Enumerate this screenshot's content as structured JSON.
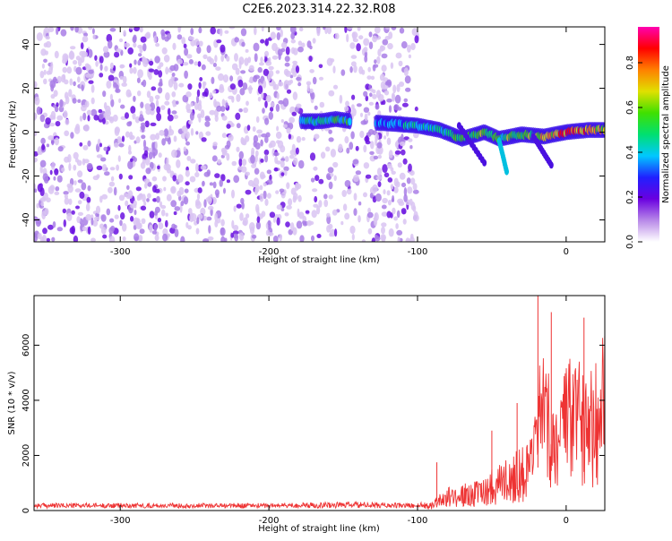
{
  "figure_title": "C2E6.2023.314.22.32.R08",
  "chart_data": [
    {
      "type": "heatmap",
      "title": "C2E6.2023.314.22.32.R08",
      "xlabel": "Height of straight line (km)",
      "ylabel": "Frequency (Hz)",
      "xlim": [
        -358,
        26
      ],
      "ylim": [
        -50,
        48
      ],
      "xticks": [
        -300,
        -200,
        -100,
        0
      ],
      "xtick_labels": [
        "-300",
        "-200",
        "-100",
        "0"
      ],
      "yticks": [
        -40,
        -20,
        0,
        20,
        40
      ],
      "ytick_labels": [
        "-40",
        "-20",
        "0",
        "20",
        "40"
      ],
      "noise_region_x": [
        -358,
        -100
      ],
      "signal_track": {
        "x": [
          -178,
          -165,
          -155,
          -145,
          -120,
          -100,
          -85,
          -70,
          -55,
          -45,
          -30,
          -15,
          0,
          15,
          26
        ],
        "y": [
          5,
          5,
          6,
          5,
          4,
          3,
          1,
          -3,
          0,
          -3,
          -1,
          -2,
          0,
          1,
          1
        ],
        "amplitude": [
          0.45,
          0.5,
          0.55,
          0.5,
          0.4,
          0.45,
          0.5,
          0.55,
          0.6,
          0.55,
          0.6,
          0.7,
          0.85,
          0.8,
          0.7
        ]
      },
      "colorbar": {
        "label": "Normalized spectral amplitude",
        "range": [
          0.0,
          0.96
        ],
        "ticks": [
          0.0,
          0.2,
          0.4,
          0.6,
          0.8
        ],
        "tick_labels": [
          "0.0",
          "0.2",
          "0.4",
          "0.6",
          "0.8"
        ],
        "colormap": [
          "#ffffff",
          "#b888e8",
          "#6a00e0",
          "#2020ff",
          "#00c8ff",
          "#00e070",
          "#40e000",
          "#e0e000",
          "#ff8000",
          "#ff0000",
          "#ff00b0"
        ]
      },
      "grid": false
    },
    {
      "type": "line",
      "xlabel": "Height of straight line (km)",
      "ylabel": "SNR (10 * v/v)",
      "xlim": [
        -358,
        26
      ],
      "ylim": [
        0,
        7800
      ],
      "xticks": [
        -300,
        -200,
        -100,
        0
      ],
      "xtick_labels": [
        "-300",
        "-200",
        "-100",
        "0"
      ],
      "yticks": [
        0,
        2000,
        4000,
        6000
      ],
      "ytick_labels": [
        "0",
        "2000",
        "4000",
        "6000"
      ],
      "series": [
        {
          "name": "SNR",
          "color": "#ee3333",
          "envelope_x": [
            -358,
            -300,
            -250,
            -200,
            -160,
            -130,
            -110,
            -100,
            -90,
            -85,
            -80,
            -70,
            -60,
            -50,
            -45,
            -40,
            -35,
            -30,
            -25,
            -20,
            -18,
            -15,
            -10,
            -5,
            0,
            10,
            20,
            26
          ],
          "envelope_y": [
            180,
            180,
            180,
            180,
            220,
            220,
            180,
            180,
            300,
            600,
            700,
            800,
            900,
            1300,
            1500,
            1600,
            1800,
            2100,
            2000,
            3200,
            5500,
            4500,
            4000,
            3800,
            4500,
            5000,
            5200,
            5600
          ],
          "peaks": [
            {
              "x": -87,
              "y": 1750
            },
            {
              "x": -50,
              "y": 2900
            },
            {
              "x": -33,
              "y": 3900
            },
            {
              "x": -19,
              "y": 7800
            },
            {
              "x": -10,
              "y": 7200
            },
            {
              "x": 12,
              "y": 7000
            }
          ]
        }
      ],
      "grid": false
    }
  ]
}
